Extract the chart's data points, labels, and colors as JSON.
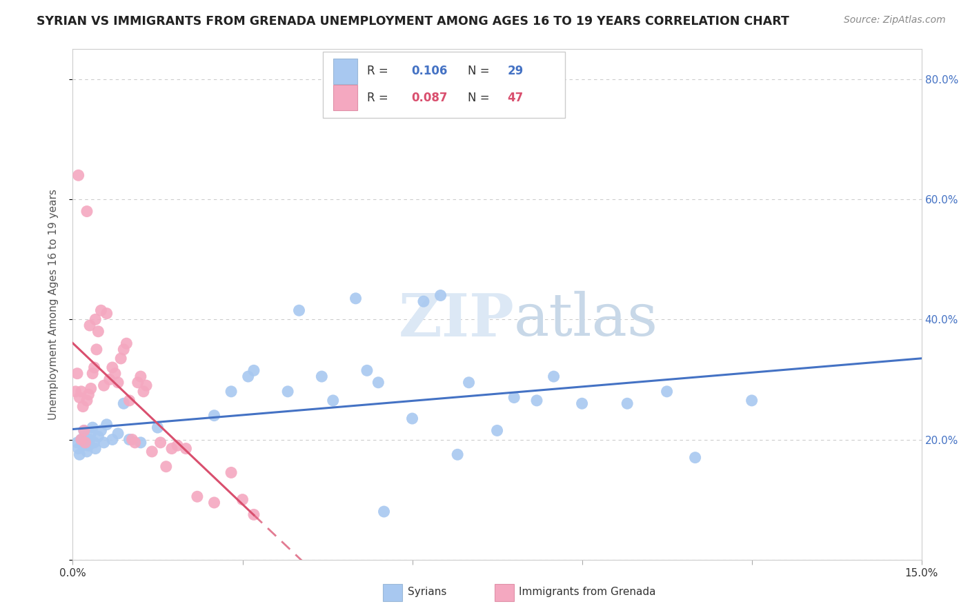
{
  "title": "SYRIAN VS IMMIGRANTS FROM GRENADA UNEMPLOYMENT AMONG AGES 16 TO 19 YEARS CORRELATION CHART",
  "source": "Source: ZipAtlas.com",
  "ylabel": "Unemployment Among Ages 16 to 19 years",
  "xlim": [
    0.0,
    0.15
  ],
  "ylim": [
    0.0,
    0.85
  ],
  "watermark": "ZIPatlas",
  "blue_color": "#a8c8f0",
  "pink_color": "#f4a8c0",
  "blue_line_color": "#4472c4",
  "pink_line_color": "#d94f6e",
  "title_fontsize": 12.5,
  "source_fontsize": 10,
  "blue_x": [
    0.0008,
    0.001,
    0.0012,
    0.0015,
    0.0018,
    0.002,
    0.0022,
    0.0025,
    0.0028,
    0.003,
    0.0032,
    0.0035,
    0.0038,
    0.004,
    0.0045,
    0.005,
    0.0055,
    0.006,
    0.007,
    0.008,
    0.009,
    0.01,
    0.012,
    0.015,
    0.028,
    0.031,
    0.032,
    0.038,
    0.04,
    0.05,
    0.052,
    0.054,
    0.062,
    0.065,
    0.07,
    0.078,
    0.082,
    0.085,
    0.09,
    0.098,
    0.105,
    0.11,
    0.12,
    0.044,
    0.046,
    0.06,
    0.055,
    0.025,
    0.068,
    0.075
  ],
  "blue_y": [
    0.195,
    0.185,
    0.175,
    0.2,
    0.19,
    0.215,
    0.2,
    0.18,
    0.19,
    0.2,
    0.21,
    0.22,
    0.195,
    0.185,
    0.205,
    0.215,
    0.195,
    0.225,
    0.2,
    0.21,
    0.26,
    0.2,
    0.195,
    0.22,
    0.28,
    0.305,
    0.315,
    0.28,
    0.415,
    0.435,
    0.315,
    0.295,
    0.43,
    0.44,
    0.295,
    0.27,
    0.265,
    0.305,
    0.26,
    0.26,
    0.28,
    0.17,
    0.265,
    0.305,
    0.265,
    0.235,
    0.08,
    0.24,
    0.175,
    0.215
  ],
  "pink_x": [
    0.0005,
    0.0008,
    0.001,
    0.0012,
    0.0015,
    0.0015,
    0.0018,
    0.002,
    0.0022,
    0.0025,
    0.0025,
    0.0028,
    0.003,
    0.0032,
    0.0035,
    0.0038,
    0.004,
    0.0042,
    0.0045,
    0.005,
    0.0055,
    0.006,
    0.0065,
    0.007,
    0.0075,
    0.008,
    0.0085,
    0.009,
    0.0095,
    0.01,
    0.0105,
    0.011,
    0.0115,
    0.012,
    0.0125,
    0.013,
    0.014,
    0.0155,
    0.0165,
    0.0175,
    0.0185,
    0.02,
    0.022,
    0.025,
    0.028,
    0.03,
    0.032
  ],
  "pink_y": [
    0.28,
    0.31,
    0.64,
    0.27,
    0.2,
    0.28,
    0.255,
    0.215,
    0.195,
    0.58,
    0.265,
    0.275,
    0.39,
    0.285,
    0.31,
    0.32,
    0.4,
    0.35,
    0.38,
    0.415,
    0.29,
    0.41,
    0.3,
    0.32,
    0.31,
    0.295,
    0.335,
    0.35,
    0.36,
    0.265,
    0.2,
    0.195,
    0.295,
    0.305,
    0.28,
    0.29,
    0.18,
    0.195,
    0.155,
    0.185,
    0.19,
    0.185,
    0.105,
    0.095,
    0.145,
    0.1,
    0.075
  ]
}
